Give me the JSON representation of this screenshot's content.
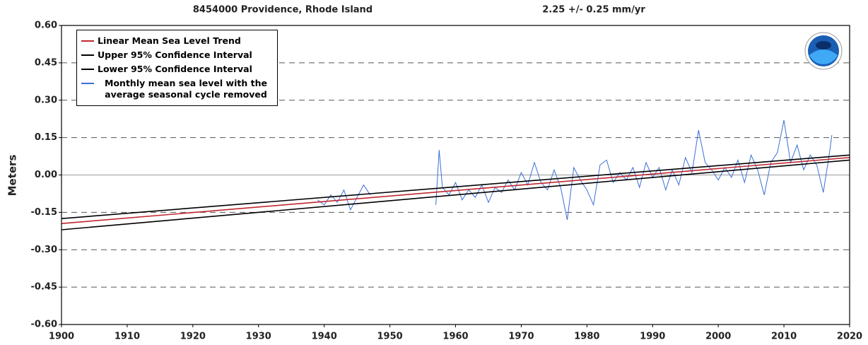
{
  "chart_data": {
    "type": "line",
    "title": "8454000 Providence, Rhode Island",
    "subtitle": "2.25 +/-  0.25 mm/yr",
    "y_label": "Meters",
    "xlim": [
      1900,
      2020
    ],
    "xticks": [
      1900,
      1910,
      1920,
      1930,
      1940,
      1950,
      1960,
      1970,
      1980,
      1990,
      2000,
      2010,
      2020
    ],
    "ylim": [
      -0.6,
      0.6
    ],
    "yticks": [
      {
        "value": 0.6,
        "label": "0.60"
      },
      {
        "value": 0.45,
        "label": "0.45"
      },
      {
        "value": 0.3,
        "label": "0.30"
      },
      {
        "value": 0.15,
        "label": "0.15"
      },
      {
        "value": 0,
        "label": "0.00"
      },
      {
        "value": -0.15,
        "label": "-0.15"
      },
      {
        "value": -0.3,
        "label": "-0.30"
      },
      {
        "value": -0.45,
        "label": "-0.45"
      },
      {
        "value": -0.6,
        "label": "-0.60"
      }
    ],
    "grid": true,
    "legend": "upper left",
    "series": [
      {
        "name": "Linear Mean Sea Level Trend",
        "color": "#c0272d",
        "x": [
          1900,
          2020
        ],
        "values": [
          -0.195,
          0.07
        ]
      },
      {
        "name": "Upper 95% Confidence Interval",
        "color": "#000000",
        "x": [
          1900,
          2020
        ],
        "values": [
          -0.175,
          0.08
        ]
      },
      {
        "name": "Lower 95% Confidence Interval",
        "color": "#000000",
        "x": [
          1900,
          2020
        ],
        "values": [
          -0.22,
          0.06
        ]
      },
      {
        "name": "Monthly mean sea level with the average seasonal cycle removed",
        "color": "#3b6fd6",
        "x": [
          1939,
          1940,
          1941,
          1942,
          1943,
          1944,
          1945,
          1946,
          1947,
          1952,
          1957,
          1957.5,
          1958,
          1959,
          1960,
          1961,
          1962,
          1963,
          1964,
          1965,
          1966,
          1967,
          1968,
          1969,
          1970,
          1971,
          1972,
          1973,
          1974,
          1975,
          1976,
          1977,
          1978,
          1979,
          1980,
          1981,
          1982,
          1983,
          1984,
          1985,
          1986,
          1987,
          1988,
          1989,
          1990,
          1991,
          1992,
          1993,
          1994,
          1995,
          1996,
          1997,
          1998,
          1999,
          2000,
          2001,
          2002,
          2003,
          2004,
          2005,
          2006,
          2007,
          2008,
          2009,
          2010,
          2011,
          2012,
          2013,
          2014,
          2015,
          2016,
          2017,
          2017.3
        ],
        "values": [
          -0.1,
          -0.12,
          -0.08,
          -0.11,
          -0.06,
          -0.14,
          -0.09,
          -0.04,
          -0.08,
          null,
          -0.12,
          0.1,
          -0.05,
          -0.08,
          -0.03,
          -0.1,
          -0.06,
          -0.09,
          -0.04,
          -0.11,
          -0.05,
          -0.07,
          -0.02,
          -0.06,
          0.01,
          -0.04,
          0.05,
          -0.03,
          -0.06,
          0.02,
          -0.05,
          -0.18,
          0.03,
          -0.02,
          -0.06,
          -0.12,
          0.04,
          0.06,
          -0.03,
          0.01,
          -0.02,
          0.03,
          -0.05,
          0.05,
          -0.01,
          0.03,
          -0.06,
          0.02,
          -0.04,
          0.07,
          0.01,
          0.18,
          0.05,
          0.02,
          -0.02,
          0.03,
          -0.01,
          0.06,
          -0.03,
          0.08,
          0.02,
          -0.08,
          0.05,
          0.09,
          0.22,
          0.05,
          0.12,
          0.02,
          0.08,
          0.04,
          -0.07,
          0.1,
          0.16
        ]
      }
    ]
  }
}
